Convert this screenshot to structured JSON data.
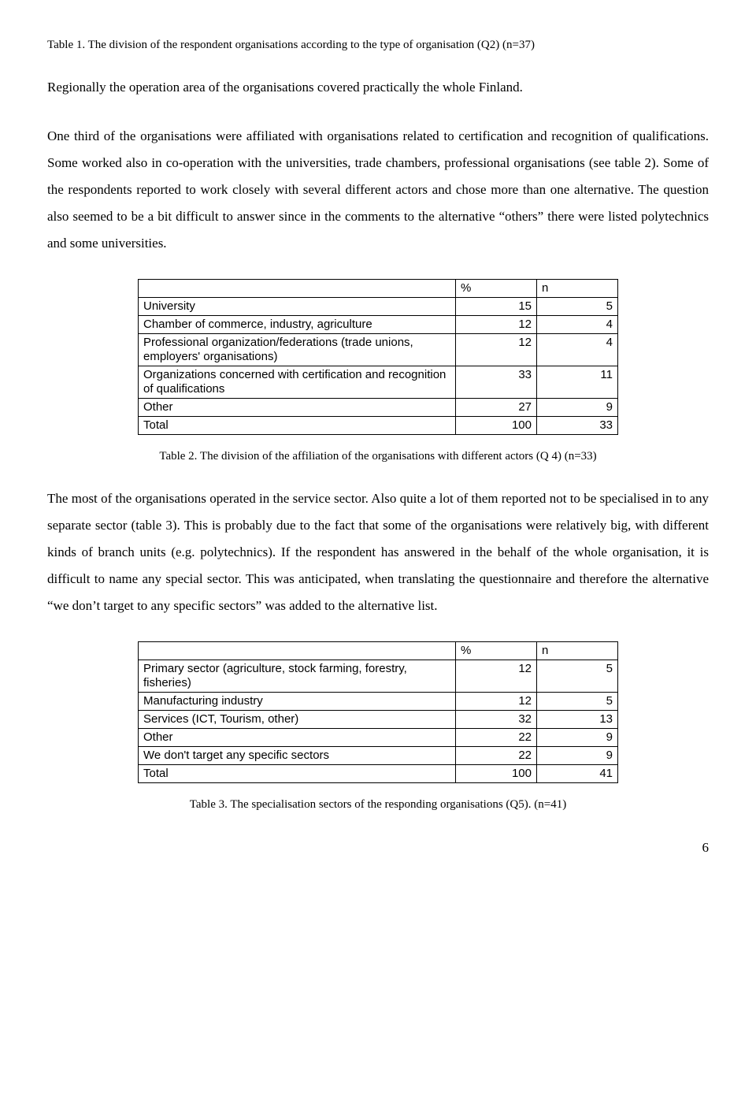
{
  "caption1": "Table 1. The division of the respondent organisations according to the type of organisation (Q2) (n=37)",
  "para1": "Regionally the operation area of the organisations covered practically the whole Finland.",
  "para2": "One third of the organisations were affiliated with organisations related to certification and recognition of qualifications. Some worked also in co-operation with the universities, trade chambers, professional organisations (see table 2). Some of the respondents reported to work closely with several different actors and chose more than one alternative. The question also seemed to be a bit difficult to answer since in the comments to the alternative “others” there were listed polytechnics and some universities.",
  "table2": {
    "header_pct": "%",
    "header_n": "n",
    "rows": [
      {
        "label": "University",
        "pct": "15",
        "n": "5"
      },
      {
        "label": "Chamber of commerce, industry, agriculture",
        "pct": "12",
        "n": "4"
      },
      {
        "label": "Professional organization/federations (trade unions, employers' organisations)",
        "pct": "12",
        "n": "4"
      },
      {
        "label": "Organizations concerned with certification and recognition of qualifications",
        "pct": "33",
        "n": "11"
      },
      {
        "label": "Other",
        "pct": "27",
        "n": "9"
      },
      {
        "label": "Total",
        "pct": "100",
        "n": "33"
      }
    ]
  },
  "caption2": "Table 2. The division of the affiliation of the organisations with different actors (Q 4) (n=33)",
  "para3": "The most of the organisations operated in the service sector. Also quite a lot of them reported not to be specialised in to any separate sector (table 3). This is probably due to the fact that some of the organisations were relatively big, with different kinds of branch units (e.g. polytechnics). If the respondent has answered in the behalf of the whole organisation, it is difficult to name any special sector.  This was anticipated, when translating the questionnaire and therefore the alternative “we don’t target to any specific sectors” was added to the alternative list.",
  "table3": {
    "header_pct": "%",
    "header_n": "n",
    "rows": [
      {
        "label": "Primary sector (agriculture, stock farming, forestry, fisheries)",
        "pct": "12",
        "n": "5"
      },
      {
        "label": "Manufacturing industry",
        "pct": "12",
        "n": "5"
      },
      {
        "label": "Services (ICT, Tourism, other)",
        "pct": "32",
        "n": "13"
      },
      {
        "label": "Other",
        "pct": "22",
        "n": "9"
      },
      {
        "label": "We don't target any specific sectors",
        "pct": "22",
        "n": "9"
      },
      {
        "label": "Total",
        "pct": "100",
        "n": "41"
      }
    ]
  },
  "caption3": "Table 3. The specialisation sectors of the responding organisations (Q5). (n=41)",
  "page_number": "6"
}
